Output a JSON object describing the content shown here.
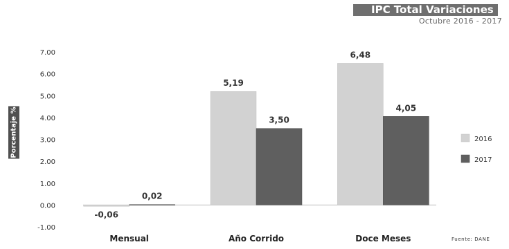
{
  "header": {
    "title": "IPC Total Variaciones",
    "subtitle": "Octubre 2016 - 2017"
  },
  "footer": {
    "source": "Fuente: DANE"
  },
  "colors": {
    "series_2016": "#d2d2d2",
    "series_2017": "#5f5f5f",
    "ylabel_bg": "#4f4f4f"
  },
  "chart_data": {
    "type": "bar",
    "categories": [
      "Mensual",
      "Año Corrido",
      "Doce Meses"
    ],
    "series": [
      {
        "name": "2016",
        "values": [
          -0.06,
          5.19,
          6.48
        ],
        "labels": [
          "-0,06",
          "5,19",
          "6,48"
        ]
      },
      {
        "name": "2017",
        "values": [
          0.02,
          3.5,
          4.05
        ],
        "labels": [
          "0,02",
          "3,50",
          "4,05"
        ]
      }
    ],
    "ylabel": "Porcentaje %",
    "xlabel": "",
    "ylim": [
      -1,
      7
    ],
    "yticks": [
      7,
      6,
      5,
      4,
      3,
      2,
      1,
      0,
      -1
    ],
    "ytick_labels": [
      "7.00",
      "6.00",
      "5.00",
      "4.00",
      "3.00",
      "2.00",
      "1.00",
      "0.00",
      "-1.00"
    ],
    "legend": "right",
    "grid": false
  }
}
